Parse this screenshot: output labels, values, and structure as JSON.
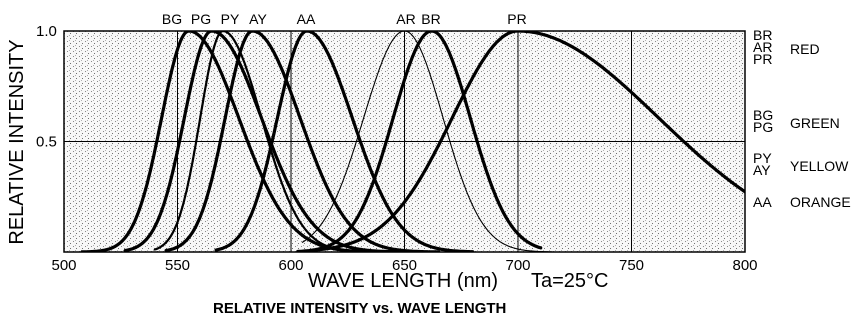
{
  "chart_data": {
    "type": "line",
    "title": "RELATIVE INTENSITY vs. WAVE LENGTH",
    "xlabel": "WAVE LENGTH (nm)",
    "ylabel": "RELATIVE INTENSITY",
    "annotation": "Ta=25°C",
    "xlim": [
      500,
      800
    ],
    "ylim": [
      0,
      1.0
    ],
    "x_ticks": [
      "500",
      "550",
      "600",
      "650",
      "700",
      "750",
      "800"
    ],
    "y_ticks": [
      "0.5",
      "1.0"
    ],
    "grid": true,
    "series": [
      {
        "name": "BG",
        "peak": 555,
        "left_sigma": 12,
        "right_sigma": 22,
        "weight": "bold",
        "x": [
          508,
          530,
          545,
          555,
          570,
          590,
          620,
          640
        ],
        "y": [
          0.0,
          0.3,
          0.82,
          1.0,
          0.82,
          0.45,
          0.12,
          0.03
        ]
      },
      {
        "name": "PG",
        "peak": 565,
        "left_sigma": 12,
        "right_sigma": 22,
        "weight": "bold",
        "x": [
          527,
          545,
          555,
          565,
          580,
          600,
          630,
          650
        ],
        "y": [
          0.0,
          0.4,
          0.8,
          1.0,
          0.8,
          0.45,
          0.12,
          0.03
        ]
      },
      {
        "name": "PY",
        "peak": 570,
        "left_sigma": 10,
        "right_sigma": 17,
        "weight": "normal",
        "x": [
          540,
          555,
          562,
          570,
          585,
          600,
          620,
          635
        ],
        "y": [
          0.0,
          0.35,
          0.72,
          1.0,
          0.65,
          0.2,
          0.03,
          0.0
        ]
      },
      {
        "name": "AY",
        "peak": 583,
        "left_sigma": 12,
        "right_sigma": 21,
        "weight": "bold",
        "x": [
          545,
          562,
          572,
          583,
          600,
          620,
          645,
          665
        ],
        "y": [
          0.0,
          0.2,
          0.66,
          1.0,
          0.72,
          0.3,
          0.08,
          0.02
        ]
      },
      {
        "name": "AA",
        "peak": 607,
        "left_sigma": 13,
        "right_sigma": 20,
        "weight": "bold",
        "x": [
          567,
          585,
          595,
          607,
          620,
          640,
          660,
          680
        ],
        "y": [
          0.0,
          0.25,
          0.65,
          1.0,
          0.8,
          0.35,
          0.1,
          0.02
        ]
      },
      {
        "name": "AR",
        "peak": 650,
        "left_sigma": 18,
        "right_sigma": 17,
        "weight": "thin",
        "x": [
          605,
          620,
          635,
          650,
          665,
          680,
          700,
          715
        ],
        "y": [
          0.03,
          0.25,
          0.7,
          1.0,
          0.68,
          0.22,
          0.02,
          0.0
        ]
      },
      {
        "name": "BR",
        "peak": 662,
        "left_sigma": 17,
        "right_sigma": 17,
        "weight": "bold",
        "x": [
          603,
          625,
          645,
          662,
          675,
          690,
          705,
          710
        ],
        "y": [
          0.0,
          0.1,
          0.63,
          1.0,
          0.76,
          0.25,
          0.02,
          0.0
        ]
      },
      {
        "name": "PR",
        "peak": 700,
        "left_sigma": 29,
        "right_sigma": 62,
        "weight": "bold",
        "x": [
          610,
          640,
          670,
          700,
          730,
          750,
          775,
          800
        ],
        "y": [
          0.0,
          0.12,
          0.58,
          1.0,
          0.89,
          0.67,
          0.4,
          0.17
        ]
      }
    ]
  },
  "legend_groups": [
    {
      "codes": [
        "BR",
        "AR",
        "PR"
      ],
      "color": "RED"
    },
    {
      "codes": [
        "BG",
        "PG"
      ],
      "color": "GREEN"
    },
    {
      "codes": [
        "PY",
        "AY"
      ],
      "color": "YELLOW"
    },
    {
      "codes": [
        "AA"
      ],
      "color": "ORANGE"
    }
  ]
}
